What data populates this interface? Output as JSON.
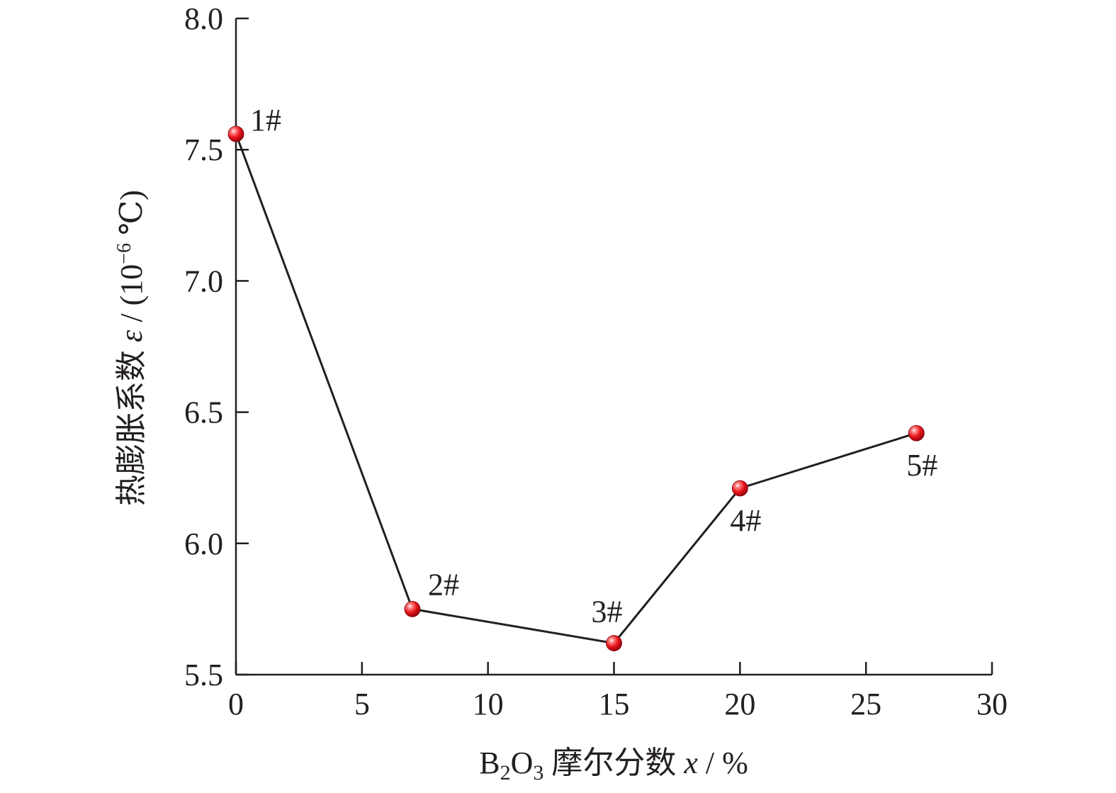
{
  "chart_data": {
    "type": "line",
    "xlabel": {
      "pre": "B",
      "sub1": "2",
      "mid": "O",
      "sub2": "3",
      "post": " 摩尔分数 ",
      "var": "x",
      "unit": " / %"
    },
    "ylabel": {
      "pre": "热膨胀系数 ",
      "var": "ε",
      "mid": " / (10",
      "sup": "−6",
      "post": " ℃)"
    },
    "xlim": [
      0,
      30
    ],
    "ylim": [
      5.5,
      8.0
    ],
    "xticks": [
      0,
      5,
      10,
      15,
      20,
      25,
      30
    ],
    "xtick_labels": [
      "0",
      "5",
      "10",
      "15",
      "20",
      "25",
      "30"
    ],
    "yticks": [
      5.5,
      6.0,
      6.5,
      7.0,
      7.5,
      8.0
    ],
    "ytick_labels": [
      "5.5",
      "6.0",
      "6.5",
      "7.0",
      "7.5",
      "8.0"
    ],
    "series": [
      {
        "x": [
          0,
          7,
          15,
          20,
          27
        ],
        "y": [
          7.56,
          5.75,
          5.62,
          6.21,
          6.42
        ],
        "point_labels": [
          "1#",
          "2#",
          "3#",
          "4#",
          "5#"
        ]
      }
    ],
    "marker_color": "#e0161e",
    "line_color": "#231f20",
    "grid": false,
    "legend": "none"
  }
}
